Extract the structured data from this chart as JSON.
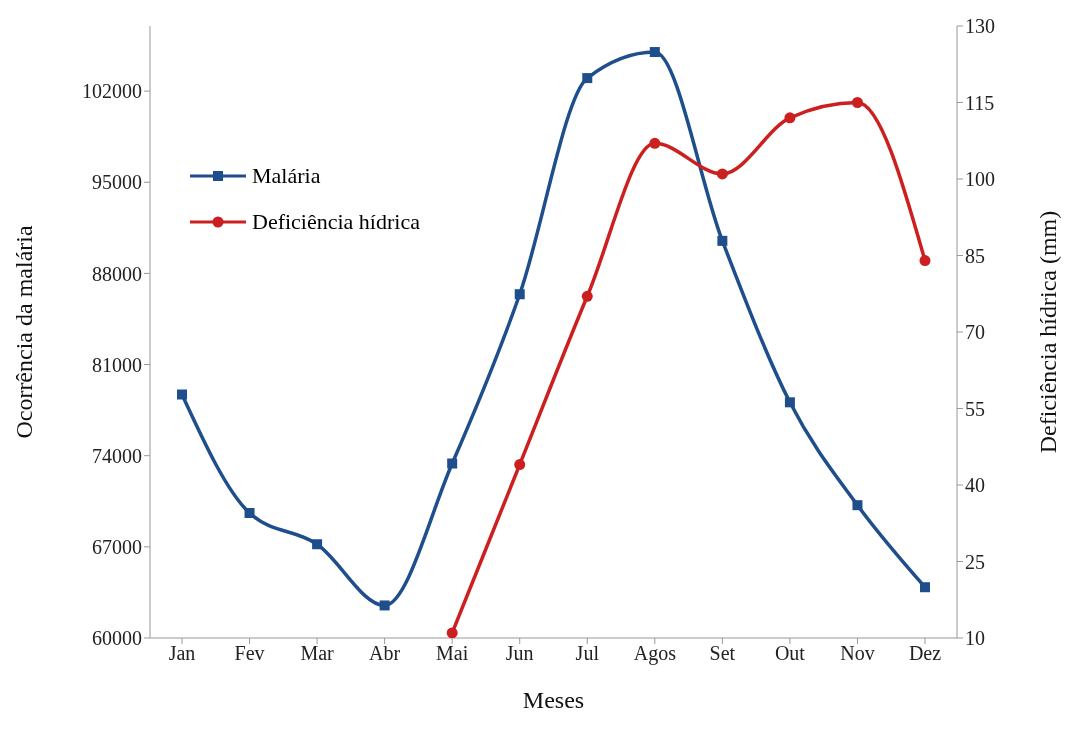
{
  "chart_data": {
    "type": "line",
    "xlabel": "Meses",
    "ylabel": "Ocorrência da malária",
    "y2label": "Deficiência hídrica (mm)",
    "categories": [
      "Jan",
      "Fev",
      "Mar",
      "Abr",
      "Mai",
      "Jun",
      "Jul",
      "Agos",
      "Set",
      "Out",
      "Nov",
      "Dez"
    ],
    "series": [
      {
        "name": "Malária",
        "color": "#1f4e8c",
        "marker": "square",
        "values": [
          78700,
          69600,
          67200,
          62500,
          73400,
          86400,
          103000,
          105000,
          90500,
          78100,
          70200,
          63900
        ]
      },
      {
        "name": "Deficiência hídrica",
        "color": "#cc1f1f",
        "marker": "circle",
        "axis": "y2",
        "values": [
          null,
          null,
          null,
          null,
          11,
          44,
          77,
          107,
          101,
          112,
          115,
          84
        ]
      }
    ],
    "ylim": [
      60000,
      107000
    ],
    "yticks": [
      60000,
      67000,
      74000,
      81000,
      88000,
      95000,
      102000
    ],
    "y2lim": [
      10,
      130
    ],
    "y2ticks": [
      10,
      25,
      40,
      55,
      70,
      85,
      100,
      115,
      130
    ],
    "legend": "top left",
    "line_style": "solid"
  }
}
